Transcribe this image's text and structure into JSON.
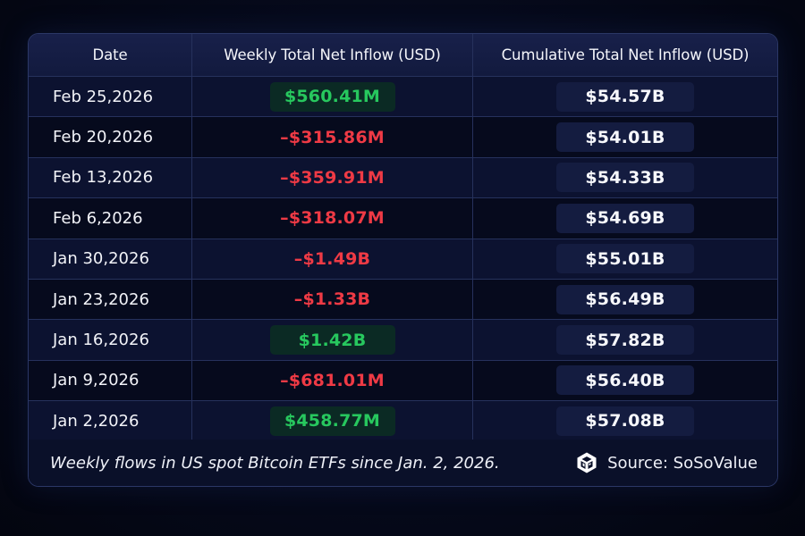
{
  "table": {
    "headers": {
      "date": "Date",
      "weekly": "Weekly Total Net Inflow (USD)",
      "cumulative": "Cumulative Total Net Inflow (USD)"
    },
    "rows": [
      {
        "date": "Feb 25,2026",
        "weekly": "$560.41M",
        "weekly_sign": "positive",
        "cumulative": "$54.57B"
      },
      {
        "date": "Feb 20,2026",
        "weekly": "-$315.86M",
        "weekly_sign": "negative",
        "cumulative": "$54.01B"
      },
      {
        "date": "Feb 13,2026",
        "weekly": "-$359.91M",
        "weekly_sign": "negative",
        "cumulative": "$54.33B"
      },
      {
        "date": "Feb 6,2026",
        "weekly": "-$318.07M",
        "weekly_sign": "negative",
        "cumulative": "$54.69B"
      },
      {
        "date": "Jan 30,2026",
        "weekly": "-$1.49B",
        "weekly_sign": "negative",
        "cumulative": "$55.01B"
      },
      {
        "date": "Jan 23,2026",
        "weekly": "-$1.33B",
        "weekly_sign": "negative",
        "cumulative": "$56.49B"
      },
      {
        "date": "Jan 16,2026",
        "weekly": "$1.42B",
        "weekly_sign": "positive",
        "cumulative": "$57.82B"
      },
      {
        "date": "Jan 9,2026",
        "weekly": "-$681.01M",
        "weekly_sign": "negative",
        "cumulative": "$56.40B"
      },
      {
        "date": "Jan 2,2026",
        "weekly": "$458.77M",
        "weekly_sign": "positive",
        "cumulative": "$57.08B"
      }
    ]
  },
  "footer": {
    "caption": "Weekly flows in US spot Bitcoin ETFs since Jan. 2, 2026.",
    "source_label": "Source: SoSoValue",
    "source_icon": "sosovalue-cube-logo-icon"
  },
  "colors": {
    "positive": "#27c85e",
    "negative": "#ef3a45",
    "background": "#060a1c",
    "border": "#26315c"
  }
}
